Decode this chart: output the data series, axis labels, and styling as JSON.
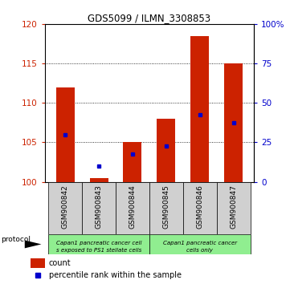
{
  "title": "GDS5099 / ILMN_3308853",
  "samples": [
    "GSM900842",
    "GSM900843",
    "GSM900844",
    "GSM900845",
    "GSM900846",
    "GSM900847"
  ],
  "count_values": [
    112.0,
    100.5,
    105.0,
    108.0,
    118.5,
    115.0
  ],
  "percentile_values": [
    106.0,
    102.0,
    103.5,
    104.5,
    108.5,
    107.5
  ],
  "base_value": 100.0,
  "ylim_left": [
    100,
    120
  ],
  "ylim_right": [
    0,
    100
  ],
  "yticks_left": [
    100,
    105,
    110,
    115,
    120
  ],
  "yticks_right": [
    0,
    25,
    50,
    75,
    100
  ],
  "yticklabels_right": [
    "0",
    "25",
    "50",
    "75",
    "100%"
  ],
  "bar_color": "#CC2200",
  "percentile_color": "#0000CC",
  "protocol_label": "protocol",
  "legend_count_label": "count",
  "legend_percentile_label": "percentile rank within the sample",
  "gray_box_color": "#D0D0D0",
  "green_box_color": "#90EE90",
  "white_color": "#FFFFFF"
}
